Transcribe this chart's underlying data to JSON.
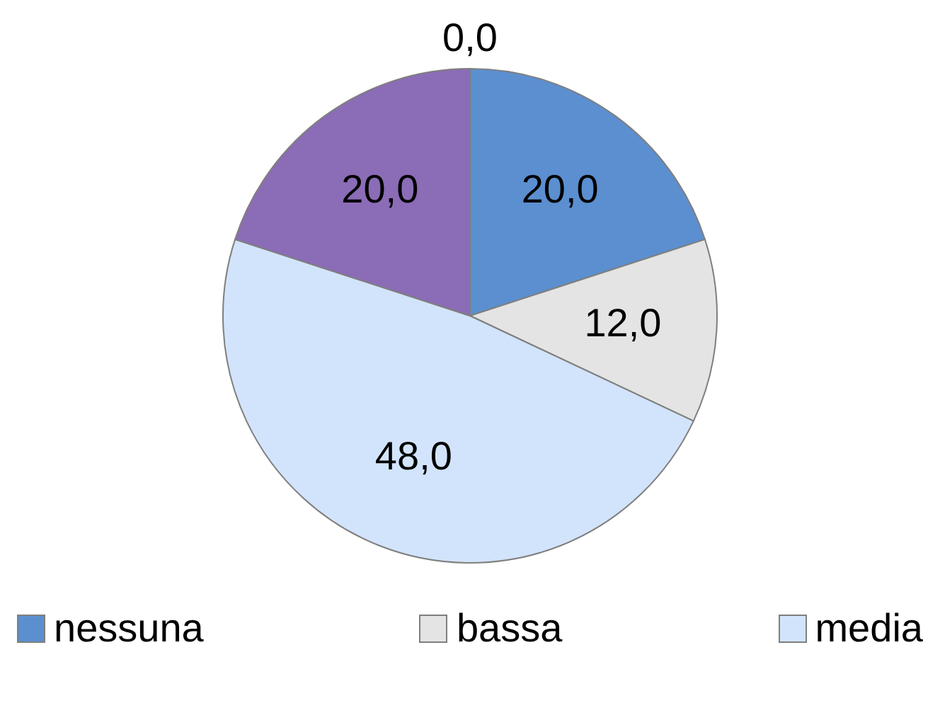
{
  "chart_data": {
    "type": "pie",
    "categories": [
      "nessuna",
      "bassa",
      "media",
      null,
      null
    ],
    "values": [
      20,
      12,
      48,
      20,
      0
    ],
    "colors": [
      "#5b8fd0",
      "#e4e4e4",
      "#d2e4fb",
      "#8b6cb6",
      "#c0504d"
    ],
    "value_labels": [
      "20,0",
      "12,0",
      "48,0",
      "20,0",
      "0,0"
    ],
    "legend": "bottom"
  }
}
